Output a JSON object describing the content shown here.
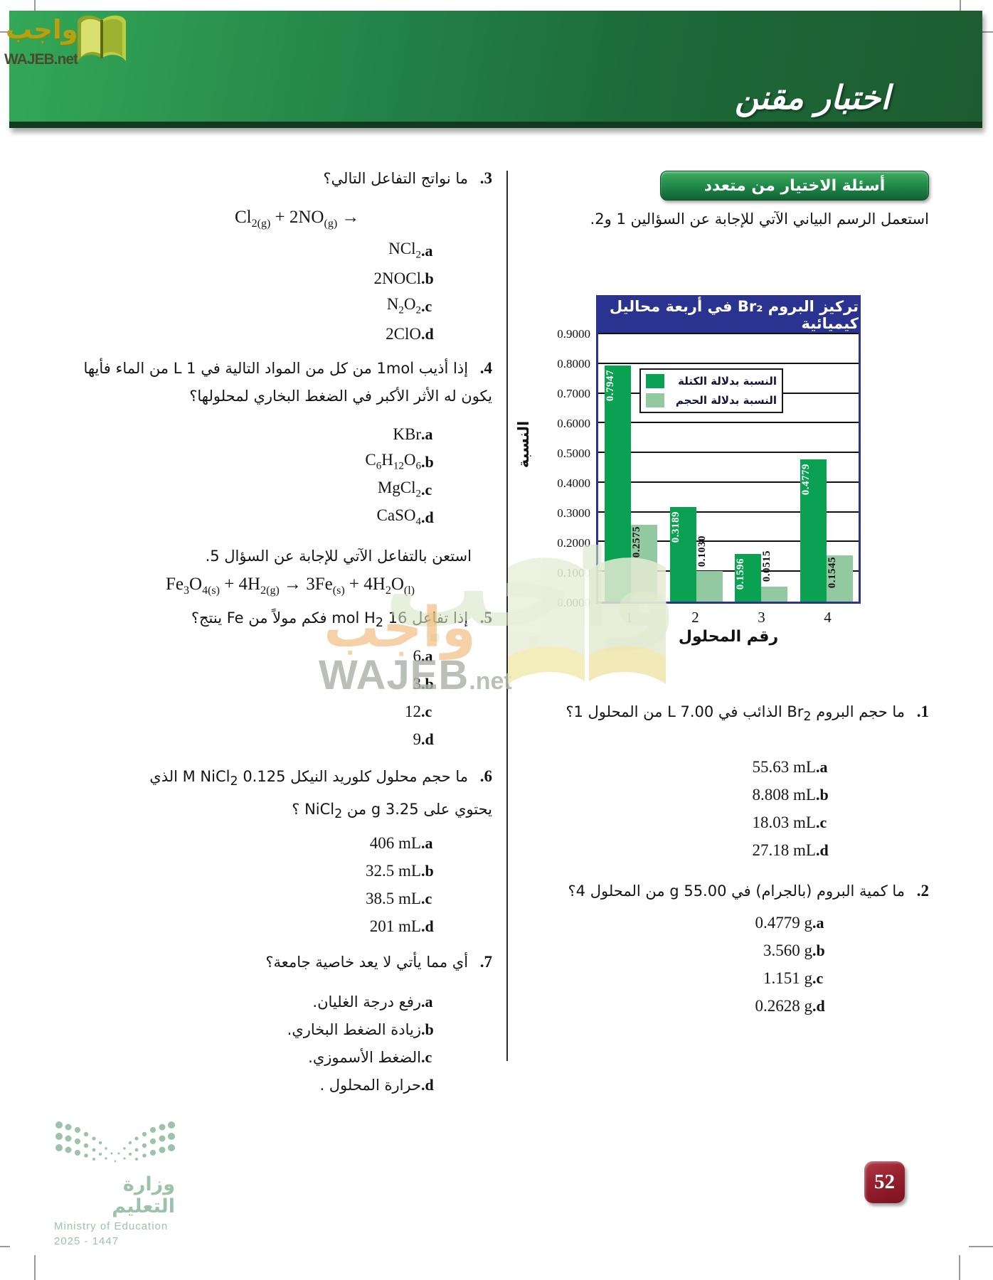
{
  "header": {
    "title": "اختبار مقنن"
  },
  "brand": {
    "name_ar": "واجب",
    "site": "WAJEB.net",
    "site_big": "WAJEB",
    "site_small": ".net"
  },
  "section": {
    "badge": "أسئلة الاختيار من متعدد",
    "intro": "استعمل الرسم البياني الآتي للإجابة عن السؤالين 1 و2."
  },
  "chart_data": {
    "type": "bar",
    "title": "تركيز البروم Br₂ في أربعة محاليل كيميائية",
    "xlabel": "رقم المحلول",
    "ylabel": "النسبة",
    "categories": [
      "1",
      "2",
      "3",
      "4"
    ],
    "series": [
      {
        "name": "النسبة بدلالة الكتلة",
        "color": "#0ba152",
        "values": [
          0.7947,
          0.3189,
          0.1596,
          0.4779
        ],
        "labels": [
          "0.7947",
          "0.3189",
          "0.1596",
          "0.4779"
        ],
        "label_placement": [
          "inside",
          "inside",
          "inside",
          "inside"
        ],
        "label_color": "#ffffff"
      },
      {
        "name": "النسبة بدلالة الحجم",
        "color": "#92c9a0",
        "values": [
          0.2575,
          0.103,
          0.0515,
          0.1545
        ],
        "labels": [
          "0.2575",
          "0.1030",
          "0.0515",
          "0.1545"
        ],
        "label_placement": [
          "inside",
          "above",
          "above",
          "inside"
        ],
        "label_color": "#111111"
      }
    ],
    "ylim": [
      0,
      0.9
    ],
    "yticks": [
      "0.9000",
      "0.8000",
      "0.7000",
      "0.6000",
      "0.5000",
      "0.4000",
      "0.3000",
      "0.2000",
      "0.1000",
      "0.0000"
    ],
    "grid": true,
    "legend_position": "inside-top",
    "title_bg": "#2b3390",
    "title_color": "#ffffff"
  },
  "answer_letters": [
    "a.",
    "b.",
    "c.",
    "d."
  ],
  "questions": {
    "q1": {
      "num": "1.",
      "text_html": "ما حجم البروم Br<sub>2</sub> الذائب في 7.00 L من المحلول 1؟",
      "answers": [
        "55.63 mL",
        "8.808 mL",
        "18.03 mL",
        "27.18 mL"
      ]
    },
    "q2": {
      "num": "2.",
      "text_html": "ما كمية البروم (بالجرام) في 55.00 g من المحلول 4؟",
      "answers": [
        "0.4779 g",
        "3.560 g",
        "1.151 g",
        "0.2628 g"
      ]
    },
    "q3": {
      "num": "3.",
      "text_html": "ما نواتج التفاعل التالي؟",
      "equation_html": "Cl<sub>2(g)</sub> + 2NO<sub>(g)</sub> →",
      "answers": [
        "NCl<sub>2</sub>",
        "2NOCl",
        "N<sub>2</sub>O<sub>2</sub>",
        "2ClO"
      ]
    },
    "q4": {
      "num": "4.",
      "text_html": "إذا أذيب 1mol من كل من المواد التالية في 1 L من الماء فأيها<br>يكون له الأثر الأكبر في الضغط البخاري لمحلولها؟",
      "answers": [
        "KBr",
        "C<sub>6</sub>H<sub>12</sub>O<sub>6</sub>",
        "MgCl<sub>2</sub>",
        "CaSO<sub>4</sub>"
      ]
    },
    "q5_intro": "استعن بالتفاعل الآتي للإجابة عن السؤال 5.",
    "q5_equation_html": "Fe<sub>3</sub>O<sub>4(s)</sub> + 4H<sub>2(g)</sub> → 3Fe<sub>(s)</sub> + 4H<sub>2</sub>O<sub>(l)</sub>",
    "q5": {
      "num": "5.",
      "text_html": "إذا تفاعل 16 mol H<sub>2</sub> فكم مولاً من Fe ينتج؟",
      "answers": [
        "6",
        "3",
        "12",
        "9"
      ]
    },
    "q6": {
      "num": "6.",
      "text_html": "ما حجم محلول كلوريد النيكل 0.125 M NiCl<sub>2</sub> الذي<br>يحتوي على 3.25 g من NiCl<sub>2</sub> ؟",
      "answers": [
        "406 mL",
        "32.5 mL",
        "38.5 mL",
        "201 mL"
      ]
    },
    "q7": {
      "num": "7.",
      "text_html": "أي مما يأتي لا يعد خاصية جامعة؟",
      "answers": [
        "رفع درجة الغليان.",
        "زيادة الضغط البخاري.",
        "الضغط الأسموزي.",
        "حرارة المحلول ."
      ]
    }
  },
  "footer": {
    "ministry_ar": "وزارة التعليم",
    "ministry_en": "Ministry of Education",
    "edition_years": "2025 - 1447",
    "page_number": "52"
  }
}
